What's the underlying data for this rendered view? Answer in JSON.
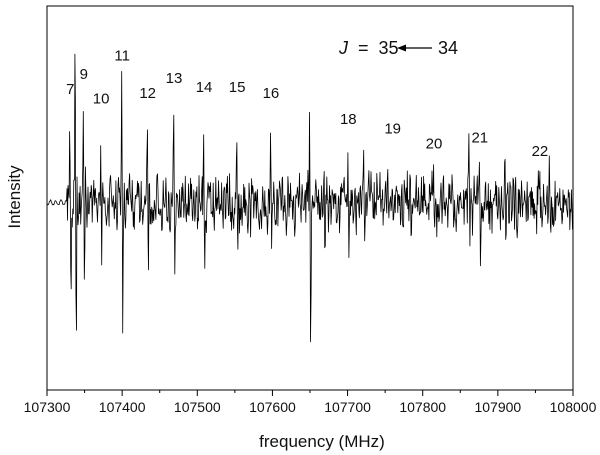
{
  "chart_data": {
    "type": "line",
    "xlabel": "frequency (MHz)",
    "ylabel": "Intensity",
    "xlim": [
      107300,
      108000
    ],
    "ylim": [
      -1,
      1.05
    ],
    "x_ticks": [
      107300,
      107400,
      107500,
      107600,
      107700,
      107800,
      107900,
      108000
    ],
    "y_ticks_shown": false,
    "grid": false,
    "annotation": {
      "text": "J = 35 ← 34",
      "j_symbol": "J",
      "equals": "=",
      "upper": "35",
      "lower": "34"
    },
    "peak_labels": [
      {
        "label": "7",
        "x": 107331,
        "y": 0.58
      },
      {
        "label": "9",
        "x": 107349,
        "y": 0.66
      },
      {
        "label": "10",
        "x": 107372,
        "y": 0.53
      },
      {
        "label": "11",
        "x": 107400,
        "y": 0.76
      },
      {
        "label": "12",
        "x": 107434,
        "y": 0.56
      },
      {
        "label": "13",
        "x": 107469,
        "y": 0.64
      },
      {
        "label": "14",
        "x": 107509,
        "y": 0.59
      },
      {
        "label": "15",
        "x": 107553,
        "y": 0.59
      },
      {
        "label": "16",
        "x": 107598,
        "y": 0.56
      },
      {
        "label": "18",
        "x": 107701,
        "y": 0.42
      },
      {
        "label": "19",
        "x": 107760,
        "y": 0.37
      },
      {
        "label": "20",
        "x": 107815,
        "y": 0.29
      },
      {
        "label": "21",
        "x": 107876,
        "y": 0.32
      },
      {
        "label": "22",
        "x": 107956,
        "y": 0.25
      }
    ],
    "spikes": [
      {
        "x": 107331,
        "up": 0.56,
        "down": -0.62
      },
      {
        "x": 107338,
        "up": 0.98,
        "down": -0.97
      },
      {
        "x": 107349,
        "up": 0.58,
        "down": -0.55
      },
      {
        "x": 107372,
        "up": 0.44,
        "down": -0.45
      },
      {
        "x": 107400,
        "up": 0.66,
        "down": -0.6
      },
      {
        "x": 107434,
        "up": 0.44,
        "down": -0.45
      },
      {
        "x": 107469,
        "up": 0.52,
        "down": -0.5
      },
      {
        "x": 107509,
        "up": 0.45,
        "down": -0.43
      },
      {
        "x": 107553,
        "up": 0.45,
        "down": -0.45
      },
      {
        "x": 107598,
        "up": 0.44,
        "down": -0.42
      },
      {
        "x": 107650,
        "up": 0.48,
        "down": -0.9
      },
      {
        "x": 107669,
        "up": 0.18,
        "down": -0.32
      },
      {
        "x": 107701,
        "up": 0.31,
        "down": -0.42
      },
      {
        "x": 107722,
        "up": 0.18,
        "down": -0.22
      },
      {
        "x": 107760,
        "up": 0.26,
        "down": -0.25
      },
      {
        "x": 107784,
        "up": 0.2,
        "down": -0.18
      },
      {
        "x": 107815,
        "up": 0.19,
        "down": -0.19
      },
      {
        "x": 107862,
        "up": 0.2,
        "down": -0.22
      },
      {
        "x": 107876,
        "up": 0.22,
        "down": -0.26
      },
      {
        "x": 107910,
        "up": 0.17,
        "down": -0.22
      },
      {
        "x": 107956,
        "up": 0.17,
        "down": -0.2
      },
      {
        "x": 107969,
        "up": 0.13,
        "down": -0.12
      }
    ]
  }
}
